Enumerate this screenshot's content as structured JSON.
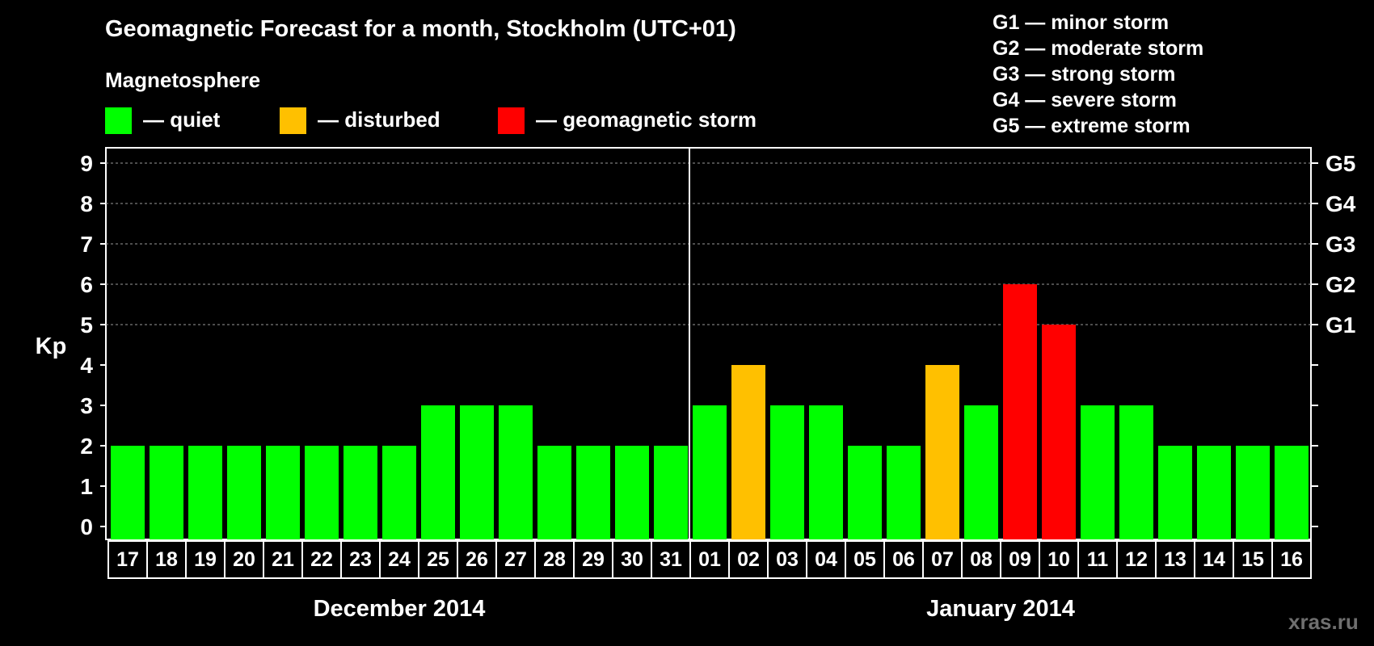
{
  "title": "Geomagnetic Forecast for a month, Stockholm (UTC+01)",
  "legend": {
    "heading": "Magnetosphere",
    "items": [
      {
        "label": "— quiet",
        "color": "#00ff00"
      },
      {
        "label": "— disturbed",
        "color": "#ffc000"
      },
      {
        "label": "— geomagnetic storm",
        "color": "#ff0000"
      }
    ]
  },
  "g_scale": [
    "G1 — minor storm",
    "G2 — moderate storm",
    "G3 — strong storm",
    "G4 — severe storm",
    "G5 — extreme storm"
  ],
  "watermark": "xras.ru",
  "chart_data": {
    "type": "bar",
    "ylabel": "Kp",
    "ylim": [
      0,
      9
    ],
    "yticks": [
      0,
      1,
      2,
      3,
      4,
      5,
      6,
      7,
      8,
      9
    ],
    "right_axis_labels": [
      {
        "y": 5,
        "label": "G1"
      },
      {
        "y": 6,
        "label": "G2"
      },
      {
        "y": 7,
        "label": "G3"
      },
      {
        "y": 8,
        "label": "G4"
      },
      {
        "y": 9,
        "label": "G5"
      }
    ],
    "grid": "horizontal dashed at Kp 5–9",
    "categories": [
      "17",
      "18",
      "19",
      "20",
      "21",
      "22",
      "23",
      "24",
      "25",
      "26",
      "27",
      "28",
      "29",
      "30",
      "31",
      "01",
      "02",
      "03",
      "04",
      "05",
      "06",
      "07",
      "08",
      "09",
      "10",
      "11",
      "12",
      "13",
      "14",
      "15",
      "16"
    ],
    "values": [
      2,
      2,
      2,
      2,
      2,
      2,
      2,
      2,
      3,
      3,
      3,
      2,
      2,
      2,
      2,
      3,
      4,
      3,
      3,
      2,
      2,
      4,
      3,
      6,
      5,
      3,
      3,
      2,
      2,
      2,
      2
    ],
    "levels": [
      "quiet",
      "quiet",
      "quiet",
      "quiet",
      "quiet",
      "quiet",
      "quiet",
      "quiet",
      "quiet",
      "quiet",
      "quiet",
      "quiet",
      "quiet",
      "quiet",
      "quiet",
      "quiet",
      "disturbed",
      "quiet",
      "quiet",
      "quiet",
      "quiet",
      "disturbed",
      "quiet",
      "storm",
      "storm",
      "quiet",
      "quiet",
      "quiet",
      "quiet",
      "quiet",
      "quiet"
    ],
    "level_colors": {
      "quiet": "#00ff00",
      "disturbed": "#ffc000",
      "storm": "#ff0000"
    },
    "months": [
      {
        "label": "December 2014",
        "start": 0,
        "count": 15
      },
      {
        "label": "January 2014",
        "start": 15,
        "count": 16
      }
    ]
  }
}
